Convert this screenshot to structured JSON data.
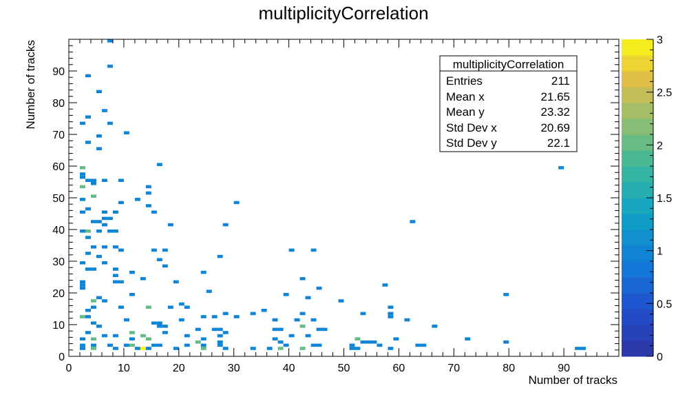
{
  "chart_data": {
    "type": "heatmap",
    "title": "multiplicityCorrelation",
    "xlabel": "Number of tracks",
    "ylabel": "Number of tracks",
    "xlim": [
      0,
      100
    ],
    "ylim": [
      0,
      100
    ],
    "x_ticks": [
      0,
      10,
      20,
      30,
      40,
      50,
      60,
      70,
      80,
      90
    ],
    "y_ticks": [
      0,
      10,
      20,
      30,
      40,
      50,
      60,
      70,
      80,
      90
    ],
    "colorbar": {
      "min": 0,
      "max": 3,
      "ticks": [
        0,
        0.5,
        1,
        1.5,
        2,
        2.5,
        3
      ],
      "tick_labels": [
        "0",
        "0.5",
        "1",
        "1.5",
        "2",
        "2.5",
        "3"
      ]
    },
    "stats": {
      "name": "multiplicityCorrelation",
      "rows": [
        {
          "label": "Entries",
          "value": "211"
        },
        {
          "label": "Mean x",
          "value": "21.65"
        },
        {
          "label": "Mean y",
          "value": "23.32"
        },
        {
          "label": "Std Dev x",
          "value": "20.69"
        },
        {
          "label": "Std Dev y",
          "value": "22.1"
        }
      ]
    },
    "bins": [
      [
        7,
        99,
        1
      ],
      [
        7,
        91,
        1
      ],
      [
        3,
        88,
        1
      ],
      [
        5,
        83,
        1
      ],
      [
        6,
        77,
        1
      ],
      [
        3,
        75,
        1
      ],
      [
        2,
        73,
        1
      ],
      [
        7,
        73,
        1
      ],
      [
        5,
        69,
        1
      ],
      [
        10,
        70,
        1
      ],
      [
        3,
        67,
        1
      ],
      [
        5,
        65,
        1
      ],
      [
        2,
        59,
        2
      ],
      [
        16,
        60,
        1
      ],
      [
        89,
        59,
        1
      ],
      [
        2,
        57,
        1
      ],
      [
        2,
        56,
        1
      ],
      [
        3,
        55,
        1
      ],
      [
        4,
        55,
        1
      ],
      [
        6,
        55,
        1
      ],
      [
        9,
        55,
        1
      ],
      [
        2,
        53,
        2
      ],
      [
        4,
        54,
        1
      ],
      [
        14,
        53,
        1
      ],
      [
        14,
        51,
        1
      ],
      [
        4,
        50,
        2
      ],
      [
        2,
        49,
        1
      ],
      [
        12,
        49,
        1
      ],
      [
        9,
        48,
        1
      ],
      [
        30,
        48,
        1
      ],
      [
        14,
        47,
        1
      ],
      [
        3,
        46,
        1
      ],
      [
        2,
        45,
        1
      ],
      [
        6,
        45,
        1
      ],
      [
        8,
        45,
        1
      ],
      [
        15,
        45,
        1
      ],
      [
        4,
        42,
        1
      ],
      [
        5,
        42,
        1
      ],
      [
        6,
        43,
        1
      ],
      [
        7,
        43,
        1
      ],
      [
        6,
        41,
        1
      ],
      [
        18,
        41,
        1
      ],
      [
        28,
        41,
        1
      ],
      [
        62,
        42,
        1
      ],
      [
        2,
        39,
        1
      ],
      [
        3,
        39,
        2
      ],
      [
        5,
        39,
        1
      ],
      [
        7,
        39,
        1
      ],
      [
        8,
        39,
        1
      ],
      [
        3,
        37,
        1
      ],
      [
        4,
        34,
        1
      ],
      [
        6,
        34,
        1
      ],
      [
        8,
        34,
        1
      ],
      [
        9,
        33,
        1
      ],
      [
        15,
        33,
        1
      ],
      [
        17,
        33,
        1
      ],
      [
        40,
        33,
        1
      ],
      [
        44,
        33,
        1
      ],
      [
        3,
        32,
        1
      ],
      [
        5,
        31,
        1
      ],
      [
        27,
        31,
        1
      ],
      [
        2,
        29,
        1
      ],
      [
        6,
        29,
        1
      ],
      [
        16,
        30,
        1
      ],
      [
        17,
        28,
        1
      ],
      [
        3,
        27,
        1
      ],
      [
        4,
        27,
        1
      ],
      [
        8,
        27,
        1
      ],
      [
        11,
        26,
        1
      ],
      [
        24,
        26,
        1
      ],
      [
        8,
        25,
        1
      ],
      [
        13,
        24,
        1
      ],
      [
        8,
        23,
        1
      ],
      [
        9,
        23,
        1
      ],
      [
        19,
        23,
        1
      ],
      [
        42,
        24,
        1
      ],
      [
        2,
        23,
        1
      ],
      [
        2,
        22,
        1
      ],
      [
        57,
        22,
        1
      ],
      [
        45,
        21,
        1
      ],
      [
        2,
        21,
        1
      ],
      [
        11,
        19,
        1
      ],
      [
        25,
        20,
        1
      ],
      [
        39,
        19,
        1
      ],
      [
        43,
        18,
        1
      ],
      [
        79,
        19,
        1
      ],
      [
        5,
        18,
        1
      ],
      [
        4,
        17,
        2
      ],
      [
        6,
        17,
        1
      ],
      [
        49,
        17,
        1
      ],
      [
        20,
        16,
        1
      ],
      [
        4,
        15,
        1
      ],
      [
        3,
        14,
        1
      ],
      [
        9,
        15,
        1
      ],
      [
        14,
        15,
        2
      ],
      [
        18,
        15,
        1
      ],
      [
        21,
        15,
        1
      ],
      [
        58,
        15,
        1
      ],
      [
        35,
        14,
        1
      ],
      [
        28,
        13,
        1
      ],
      [
        33,
        13,
        1
      ],
      [
        42,
        13,
        1
      ],
      [
        53,
        13,
        1
      ],
      [
        2,
        12,
        2
      ],
      [
        3,
        12,
        1
      ],
      [
        58,
        12,
        1
      ],
      [
        58,
        13,
        1
      ],
      [
        10,
        11,
        1
      ],
      [
        20,
        11,
        1
      ],
      [
        24,
        12,
        1
      ],
      [
        26,
        12,
        1
      ],
      [
        30,
        12,
        1
      ],
      [
        37,
        11,
        1
      ],
      [
        41,
        11,
        1
      ],
      [
        44,
        11,
        1
      ],
      [
        61,
        11,
        1
      ],
      [
        4,
        10,
        1
      ],
      [
        15,
        10,
        1
      ],
      [
        16,
        10,
        1
      ],
      [
        5,
        9,
        1
      ],
      [
        16,
        9,
        1
      ],
      [
        17,
        9,
        1
      ],
      [
        42,
        9,
        2
      ],
      [
        66,
        9,
        1
      ],
      [
        3,
        7,
        1
      ],
      [
        11,
        7,
        2
      ],
      [
        17,
        7,
        1
      ],
      [
        23,
        8,
        1
      ],
      [
        26,
        8,
        1
      ],
      [
        27,
        8,
        1
      ],
      [
        28,
        7,
        1
      ],
      [
        37,
        8,
        1
      ],
      [
        38,
        8,
        1
      ],
      [
        45,
        8,
        1
      ],
      [
        46,
        8,
        1
      ],
      [
        6,
        6,
        1
      ],
      [
        8,
        6,
        1
      ],
      [
        13,
        6,
        2
      ],
      [
        21,
        6,
        1
      ],
      [
        27,
        6,
        1
      ],
      [
        40,
        6,
        1
      ],
      [
        43,
        6,
        1
      ],
      [
        2,
        5,
        1
      ],
      [
        4,
        5,
        2
      ],
      [
        11,
        5,
        1
      ],
      [
        14,
        5,
        2
      ],
      [
        24,
        5,
        1
      ],
      [
        37,
        5,
        1
      ],
      [
        52,
        5,
        2
      ],
      [
        59,
        5,
        1
      ],
      [
        72,
        5,
        1
      ],
      [
        79,
        4,
        1
      ],
      [
        23,
        4,
        2
      ],
      [
        27,
        4,
        1
      ],
      [
        38,
        4,
        1
      ],
      [
        55,
        4,
        1
      ],
      [
        53,
        4,
        1
      ],
      [
        54,
        4,
        1
      ],
      [
        2,
        3,
        1
      ],
      [
        4,
        3,
        1
      ],
      [
        7,
        3,
        1
      ],
      [
        10,
        3,
        1
      ],
      [
        11,
        3,
        2
      ],
      [
        15,
        3,
        1
      ],
      [
        16,
        3,
        1
      ],
      [
        21,
        3,
        1
      ],
      [
        24,
        3,
        1
      ],
      [
        27,
        3,
        1
      ],
      [
        39,
        3,
        1
      ],
      [
        44,
        3,
        1
      ],
      [
        45,
        3,
        1
      ],
      [
        51,
        3,
        1
      ],
      [
        56,
        3,
        1
      ],
      [
        63,
        3,
        1
      ],
      [
        64,
        3,
        1
      ],
      [
        2,
        2,
        1
      ],
      [
        4,
        2,
        2
      ],
      [
        8,
        2,
        1
      ],
      [
        12,
        2,
        1
      ],
      [
        13,
        2,
        3
      ],
      [
        14,
        2,
        1
      ],
      [
        19,
        2,
        1
      ],
      [
        24,
        2,
        2
      ],
      [
        28,
        2,
        1
      ],
      [
        33,
        2,
        1
      ],
      [
        36,
        2,
        1
      ],
      [
        38,
        2,
        2
      ],
      [
        42,
        2,
        2
      ],
      [
        51,
        2,
        1
      ],
      [
        52,
        2,
        1
      ],
      [
        58,
        2,
        1
      ],
      [
        92,
        2,
        1
      ],
      [
        93,
        2,
        1
      ]
    ]
  }
}
